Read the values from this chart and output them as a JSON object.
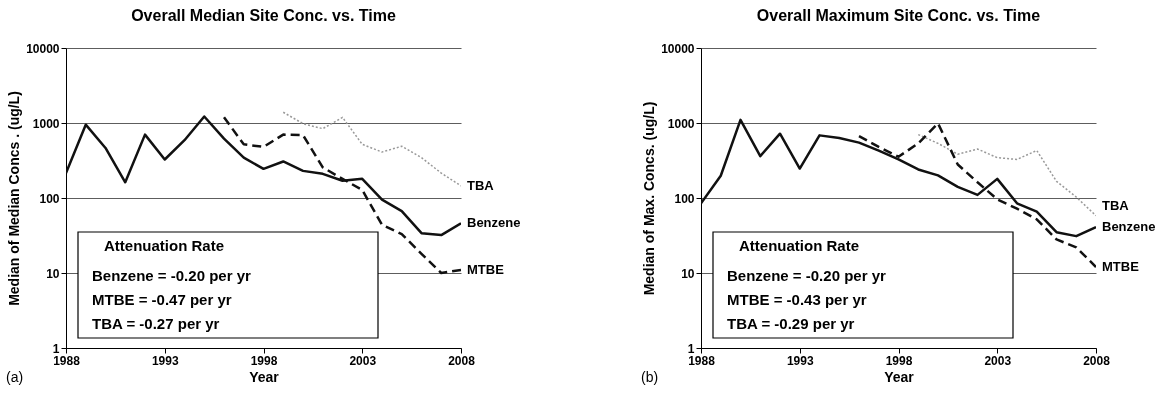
{
  "chart_data": [
    {
      "type": "line",
      "title": "Overall Median Site Conc. vs. Time",
      "xlabel": "Year",
      "ylabel": "Median of Median Concs . (ug/L)",
      "log": "y",
      "grid": "y",
      "marker": "none",
      "xlim": [
        1988,
        2008
      ],
      "xticks": [
        1988,
        1993,
        1998,
        2003,
        2008
      ],
      "ylim": [
        1,
        10000
      ],
      "yticks": [
        1,
        10,
        100,
        1000,
        10000
      ],
      "x": [
        1988,
        1989,
        1990,
        1991,
        1992,
        1993,
        1994,
        1995,
        1996,
        1997,
        1998,
        1999,
        2000,
        2001,
        2002,
        2003,
        2004,
        2005,
        2006,
        2007,
        2008
      ],
      "series": [
        {
          "name": "TBA",
          "color": "#999999",
          "line_style": "dotted",
          "x": [
            1999,
            2000,
            2001,
            2002,
            2003,
            2004,
            2005,
            2006,
            2007,
            2008
          ],
          "values": [
            1390,
            980,
            840,
            1190,
            520,
            410,
            490,
            345,
            215,
            145
          ]
        },
        {
          "name": "Benzene",
          "color": "#111111",
          "line_style": "solid",
          "values": [
            215,
            950,
            465,
            162,
            700,
            326,
            590,
            1220,
            620,
            345,
            245,
            307,
            230,
            210,
            170,
            180,
            95,
            67,
            34,
            32,
            46
          ]
        },
        {
          "name": "MTBE",
          "color": "#111111",
          "line_style": "dashed",
          "x": [
            1996,
            1997,
            1998,
            1999,
            2000,
            2001,
            2002,
            2003,
            2004,
            2005,
            2006,
            2007,
            2008
          ],
          "values": [
            1190,
            520,
            480,
            700,
            690,
            256,
            180,
            128,
            44,
            33,
            18,
            10,
            11
          ]
        }
      ],
      "annotations": [
        "Attenuation  Rate",
        "Benzene = -0.20 per yr",
        "MTBE  = -0.47 per yr",
        "TBA =  -0.27 per yr",
        "(a)"
      ]
    },
    {
      "type": "line",
      "title": "Overall Maximum Site Conc. vs. Time",
      "xlabel": "Year",
      "ylabel": "Median of Max. Concs. (ug/L)",
      "log": "y",
      "grid": "y",
      "marker": "none",
      "xlim": [
        1988,
        2008
      ],
      "xticks": [
        1988,
        1993,
        1998,
        2003,
        2008
      ],
      "ylim": [
        1,
        10000
      ],
      "yticks": [
        1,
        10,
        100,
        1000,
        10000
      ],
      "x": [
        1988,
        1989,
        1990,
        1991,
        1992,
        1993,
        1994,
        1995,
        1996,
        1997,
        1998,
        1999,
        2000,
        2001,
        2002,
        2003,
        2004,
        2005,
        2006,
        2007,
        2008
      ],
      "series": [
        {
          "name": "TBA",
          "color": "#999999",
          "line_style": "dotted",
          "x": [
            1999,
            2000,
            2001,
            2002,
            2003,
            2004,
            2005,
            2006,
            2007,
            2008
          ],
          "values": [
            700,
            535,
            383,
            450,
            345,
            327,
            430,
            167,
            103,
            58
          ]
        },
        {
          "name": "Benzene",
          "color": "#111111",
          "line_style": "solid",
          "values": [
            85,
            198,
            1100,
            362,
            720,
            247,
            684,
            630,
            547,
            428,
            327,
            240,
            200,
            141,
            110,
            180,
            85,
            66,
            35,
            31,
            41
          ]
        },
        {
          "name": "MTBE",
          "color": "#111111",
          "line_style": "dashed",
          "x": [
            1996,
            1997,
            1998,
            1999,
            2000,
            2001,
            2002,
            2003,
            2004,
            2005,
            2006,
            2007,
            2008
          ],
          "values": [
            670,
            480,
            355,
            535,
            990,
            280,
            162,
            96,
            72,
            52,
            28,
            22,
            12
          ]
        }
      ],
      "annotations": [
        "Attenuation  Rate",
        "Benzene = -0.20 per yr",
        "MTBE  = -0.43 per yr",
        "TBA =  -0.29 per yr",
        "(b)"
      ]
    }
  ]
}
